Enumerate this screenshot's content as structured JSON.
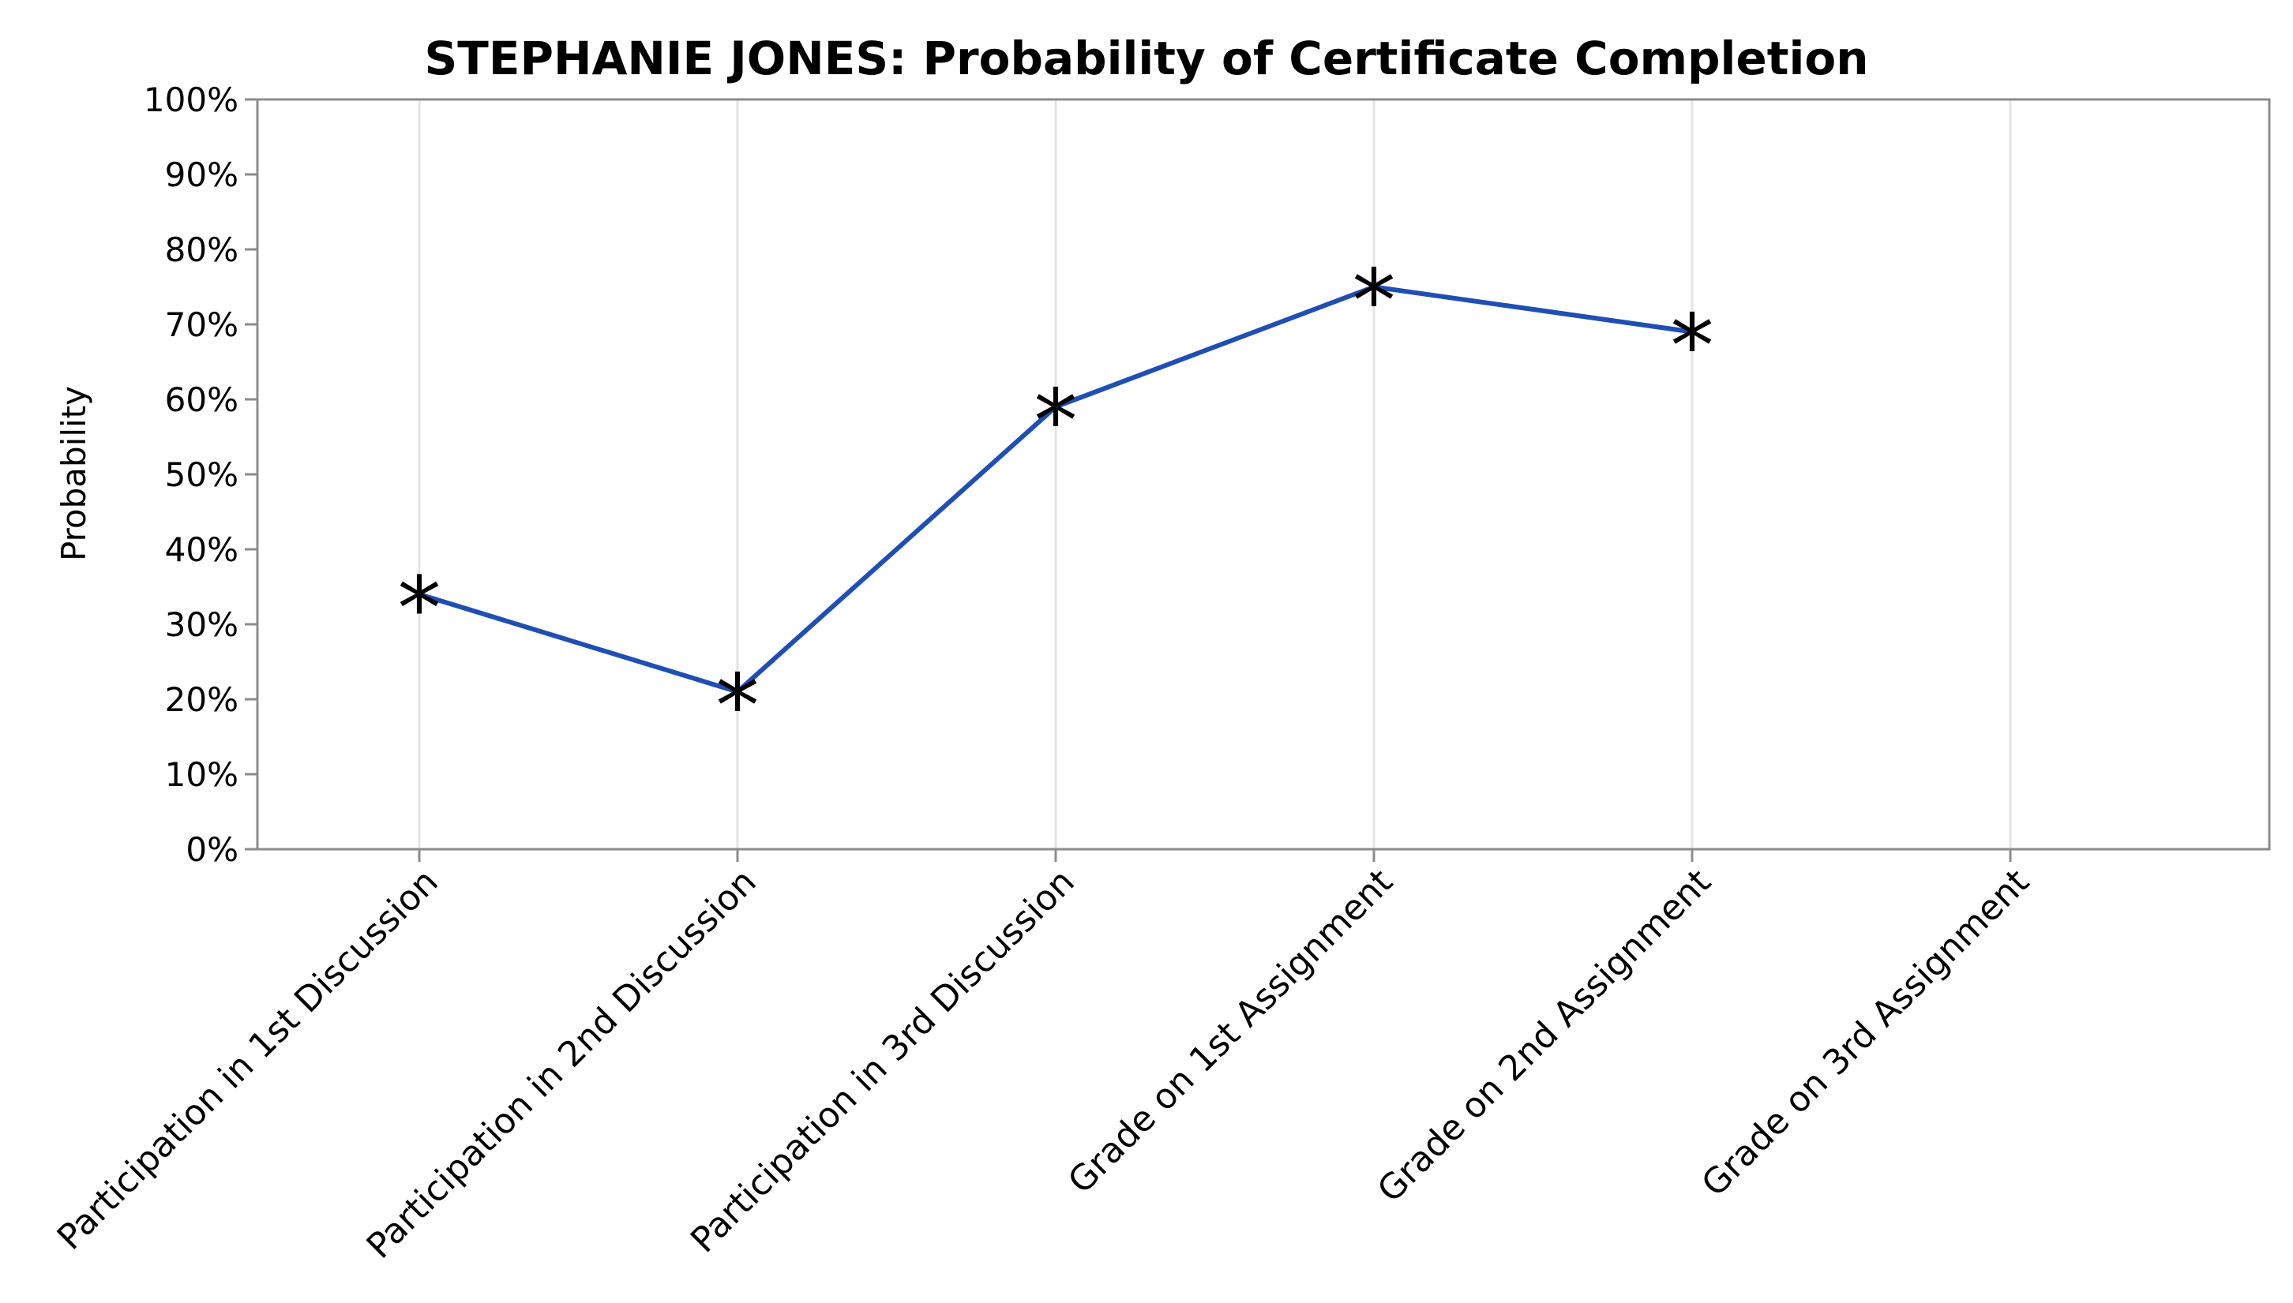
{
  "chart_data": {
    "type": "line",
    "title": "STEPHANIE JONES: Probability of Certificate Completion",
    "xlabel": "",
    "ylabel": "Probability",
    "categories": [
      "Participation in 1st Discussion",
      "Participation in 2nd Discussion",
      "Participation in 3rd Discussion",
      "Grade on 1st Assignment",
      "Grade on 2nd Assignment",
      "Grade on 3rd Assignment"
    ],
    "series": [
      {
        "values": [
          34,
          21,
          59,
          75,
          69,
          null
        ]
      }
    ],
    "ylim": [
      0,
      100
    ],
    "yticks": [
      "0%",
      "10%",
      "20%",
      "30%",
      "40%",
      "50%",
      "60%",
      "70%",
      "80%",
      "90%",
      "100%"
    ],
    "y_unit": "%",
    "grid": "vertical",
    "legend": "none",
    "marker": "*",
    "colors": {
      "line": "#1f4fb5",
      "marker": "#000000",
      "grid": "#e4e4e4",
      "frame": "#8c8c8c"
    }
  }
}
